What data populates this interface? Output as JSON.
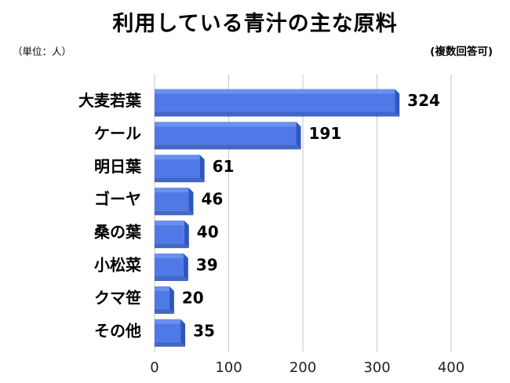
{
  "title": "利用している青汁の主な原料",
  "unit_note": "（単位：人）",
  "multi_answer_note": "(複数回答可)",
  "colors": {
    "bar_front": "#4f79e6",
    "bar_top": "#6f93f0",
    "bar_side": "#2f56bf",
    "grid": "#c6c6c6"
  },
  "chart_data": {
    "type": "bar",
    "orientation": "horizontal",
    "title": "利用している青汁の主な原料",
    "categories": [
      "大麦若葉",
      "ケール",
      "明日葉",
      "ゴーヤ",
      "桑の葉",
      "小松菜",
      "クマ笹",
      "その他"
    ],
    "values": [
      324,
      191,
      61,
      46,
      40,
      39,
      20,
      35
    ],
    "data_labels": [
      "324",
      "191",
      "61",
      "46",
      "40",
      "39",
      "20",
      "35"
    ],
    "xlim": [
      0,
      400
    ],
    "x_ticks": [
      "0",
      "100",
      "200",
      "300",
      "400"
    ],
    "grid": true,
    "legend": "none"
  }
}
